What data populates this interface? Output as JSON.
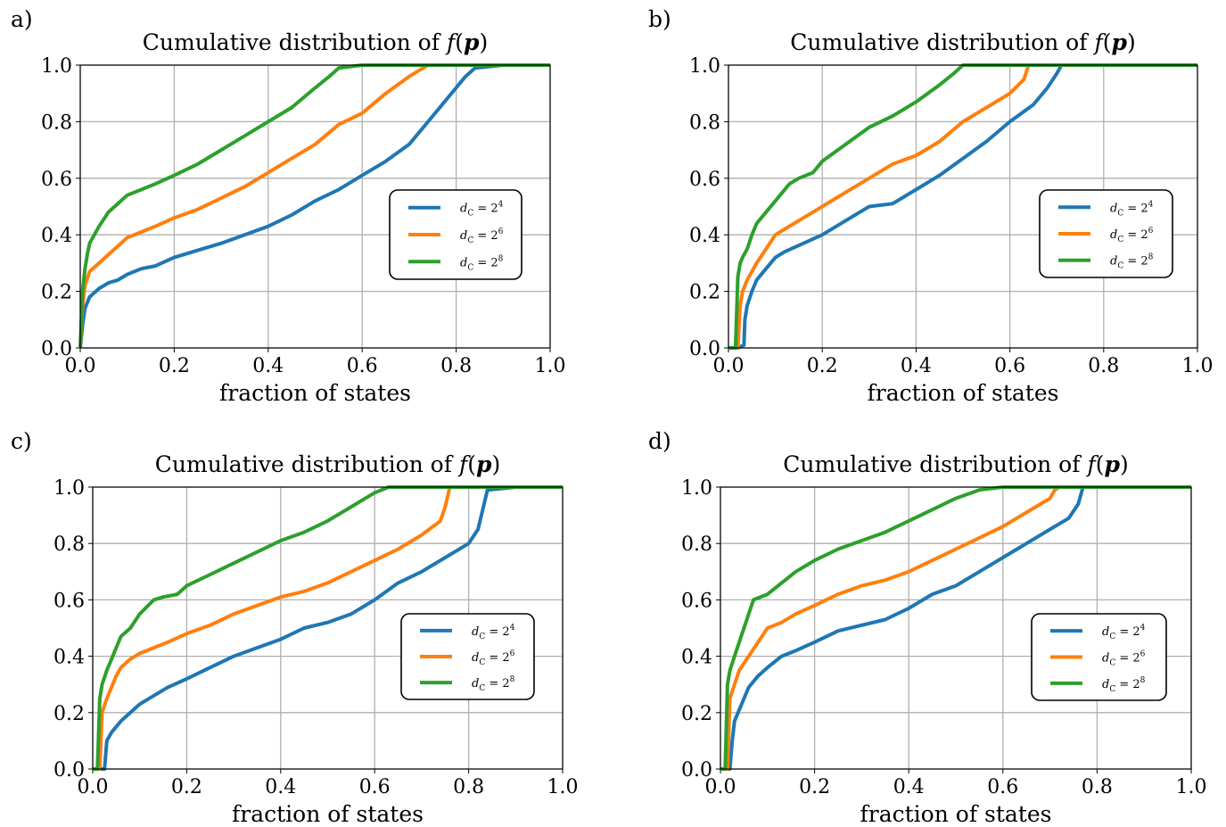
{
  "figure": {
    "colors": {
      "blue": "#1f77b4",
      "orange": "#ff7f0e",
      "green": "#2ca02c",
      "grid": "#b0b0b0"
    }
  },
  "chart_data": [
    {
      "panel": "a)",
      "type": "line",
      "title": "Cumulative distribution of f(p)",
      "xlabel": "fraction of states",
      "ylabel": "",
      "xlim": [
        0,
        1
      ],
      "ylim": [
        0,
        1
      ],
      "xticks": [
        "0.0",
        "0.2",
        "0.4",
        "0.6",
        "0.8",
        "1.0"
      ],
      "yticks": [
        "0.0",
        "0.2",
        "0.4",
        "0.6",
        "0.8",
        "1.0"
      ],
      "grid": true,
      "legend_position": "center-right",
      "series": [
        {
          "name": "d_C = 2^4",
          "color": "#1f77b4",
          "x": [
            0.0,
            0.005,
            0.01,
            0.02,
            0.04,
            0.06,
            0.08,
            0.1,
            0.13,
            0.16,
            0.2,
            0.25,
            0.3,
            0.35,
            0.4,
            0.45,
            0.5,
            0.55,
            0.6,
            0.65,
            0.7,
            0.75,
            0.8,
            0.82,
            0.84,
            0.9,
            1.0
          ],
          "y": [
            0.0,
            0.08,
            0.14,
            0.18,
            0.21,
            0.23,
            0.24,
            0.26,
            0.28,
            0.29,
            0.32,
            0.345,
            0.37,
            0.4,
            0.43,
            0.47,
            0.52,
            0.56,
            0.61,
            0.66,
            0.72,
            0.82,
            0.92,
            0.96,
            0.99,
            1.0,
            1.0
          ]
        },
        {
          "name": "d_C = 2^6",
          "color": "#ff7f0e",
          "x": [
            0.0,
            0.005,
            0.01,
            0.02,
            0.04,
            0.06,
            0.08,
            0.1,
            0.13,
            0.16,
            0.2,
            0.25,
            0.3,
            0.35,
            0.4,
            0.45,
            0.5,
            0.55,
            0.6,
            0.65,
            0.7,
            0.72,
            0.74,
            0.8,
            1.0
          ],
          "y": [
            0.0,
            0.15,
            0.22,
            0.27,
            0.3,
            0.33,
            0.36,
            0.39,
            0.41,
            0.43,
            0.46,
            0.49,
            0.53,
            0.57,
            0.62,
            0.67,
            0.72,
            0.79,
            0.83,
            0.9,
            0.96,
            0.98,
            1.0,
            1.0,
            1.0
          ]
        },
        {
          "name": "d_C = 2^8",
          "color": "#2ca02c",
          "x": [
            0.0,
            0.005,
            0.01,
            0.015,
            0.02,
            0.03,
            0.04,
            0.06,
            0.08,
            0.1,
            0.13,
            0.16,
            0.2,
            0.25,
            0.3,
            0.35,
            0.4,
            0.45,
            0.5,
            0.53,
            0.55,
            0.6,
            1.0
          ],
          "y": [
            0.0,
            0.2,
            0.28,
            0.33,
            0.37,
            0.4,
            0.43,
            0.48,
            0.51,
            0.54,
            0.56,
            0.58,
            0.61,
            0.65,
            0.7,
            0.75,
            0.8,
            0.85,
            0.92,
            0.96,
            0.99,
            1.0,
            1.0
          ]
        }
      ]
    },
    {
      "panel": "b)",
      "type": "line",
      "title": "Cumulative distribution of f(p)",
      "xlabel": "fraction of states",
      "ylabel": "",
      "xlim": [
        0,
        1
      ],
      "ylim": [
        0,
        1
      ],
      "xticks": [
        "0.0",
        "0.2",
        "0.4",
        "0.6",
        "0.8",
        "1.0"
      ],
      "yticks": [
        "0.0",
        "0.2",
        "0.4",
        "0.6",
        "0.8",
        "1.0"
      ],
      "grid": true,
      "legend_position": "center-right",
      "series": [
        {
          "name": "d_C = 2^4",
          "color": "#1f77b4",
          "x": [
            0.0,
            0.02,
            0.033,
            0.035,
            0.04,
            0.05,
            0.06,
            0.08,
            0.1,
            0.12,
            0.16,
            0.2,
            0.25,
            0.3,
            0.35,
            0.4,
            0.45,
            0.5,
            0.55,
            0.6,
            0.65,
            0.68,
            0.7,
            0.71,
            0.8,
            1.0
          ],
          "y": [
            0.0,
            0.0,
            0.01,
            0.1,
            0.15,
            0.2,
            0.24,
            0.28,
            0.32,
            0.34,
            0.37,
            0.4,
            0.45,
            0.5,
            0.51,
            0.56,
            0.61,
            0.67,
            0.73,
            0.8,
            0.86,
            0.92,
            0.97,
            1.0,
            1.0,
            1.0
          ]
        },
        {
          "name": "d_C = 2^6",
          "color": "#ff7f0e",
          "x": [
            0.0,
            0.02,
            0.025,
            0.03,
            0.04,
            0.05,
            0.06,
            0.08,
            0.1,
            0.12,
            0.15,
            0.18,
            0.2,
            0.25,
            0.3,
            0.35,
            0.4,
            0.45,
            0.5,
            0.55,
            0.6,
            0.63,
            0.64,
            0.7,
            1.0
          ],
          "y": [
            0.0,
            0.0,
            0.15,
            0.2,
            0.24,
            0.27,
            0.3,
            0.35,
            0.4,
            0.42,
            0.45,
            0.48,
            0.5,
            0.55,
            0.6,
            0.65,
            0.68,
            0.73,
            0.8,
            0.85,
            0.9,
            0.95,
            1.0,
            1.0,
            1.0
          ]
        },
        {
          "name": "d_C = 2^8",
          "color": "#2ca02c",
          "x": [
            0.0,
            0.015,
            0.02,
            0.025,
            0.03,
            0.04,
            0.05,
            0.06,
            0.08,
            0.1,
            0.13,
            0.15,
            0.18,
            0.2,
            0.25,
            0.3,
            0.35,
            0.4,
            0.45,
            0.48,
            0.5,
            0.6,
            1.0
          ],
          "y": [
            0.0,
            0.0,
            0.25,
            0.3,
            0.32,
            0.35,
            0.4,
            0.44,
            0.48,
            0.52,
            0.58,
            0.6,
            0.62,
            0.66,
            0.72,
            0.78,
            0.82,
            0.87,
            0.93,
            0.97,
            1.0,
            1.0,
            1.0
          ]
        }
      ]
    },
    {
      "panel": "c)",
      "type": "line",
      "title": "Cumulative distribution of f(p)",
      "xlabel": "fraction of states",
      "ylabel": "",
      "xlim": [
        0,
        1
      ],
      "ylim": [
        0,
        1
      ],
      "xticks": [
        "0.0",
        "0.2",
        "0.4",
        "0.6",
        "0.8",
        "1.0"
      ],
      "yticks": [
        "0.0",
        "0.2",
        "0.4",
        "0.6",
        "0.8",
        "1.0"
      ],
      "grid": true,
      "legend_position": "center-right",
      "series": [
        {
          "name": "d_C = 2^4",
          "color": "#1f77b4",
          "x": [
            0.0,
            0.025,
            0.03,
            0.04,
            0.06,
            0.08,
            0.1,
            0.13,
            0.16,
            0.2,
            0.25,
            0.3,
            0.35,
            0.4,
            0.45,
            0.5,
            0.55,
            0.6,
            0.65,
            0.7,
            0.75,
            0.8,
            0.82,
            0.83,
            0.84,
            0.9,
            1.0
          ],
          "y": [
            0.0,
            0.0,
            0.1,
            0.13,
            0.17,
            0.2,
            0.23,
            0.26,
            0.29,
            0.32,
            0.36,
            0.4,
            0.43,
            0.46,
            0.5,
            0.52,
            0.55,
            0.6,
            0.66,
            0.7,
            0.75,
            0.8,
            0.85,
            0.92,
            0.99,
            1.0,
            1.0
          ]
        },
        {
          "name": "d_C = 2^6",
          "color": "#ff7f0e",
          "x": [
            0.0,
            0.015,
            0.02,
            0.03,
            0.04,
            0.05,
            0.06,
            0.08,
            0.1,
            0.13,
            0.16,
            0.2,
            0.25,
            0.3,
            0.35,
            0.4,
            0.45,
            0.5,
            0.55,
            0.6,
            0.65,
            0.7,
            0.74,
            0.75,
            0.76,
            0.8,
            1.0
          ],
          "y": [
            0.0,
            0.0,
            0.2,
            0.25,
            0.29,
            0.33,
            0.36,
            0.39,
            0.41,
            0.43,
            0.45,
            0.48,
            0.51,
            0.55,
            0.58,
            0.61,
            0.63,
            0.66,
            0.7,
            0.74,
            0.78,
            0.83,
            0.88,
            0.93,
            1.0,
            1.0,
            1.0
          ]
        },
        {
          "name": "d_C = 2^8",
          "color": "#2ca02c",
          "x": [
            0.0,
            0.01,
            0.015,
            0.02,
            0.03,
            0.04,
            0.05,
            0.06,
            0.08,
            0.1,
            0.13,
            0.15,
            0.18,
            0.2,
            0.25,
            0.3,
            0.35,
            0.4,
            0.45,
            0.5,
            0.55,
            0.6,
            0.63,
            0.7,
            1.0
          ],
          "y": [
            0.0,
            0.0,
            0.25,
            0.3,
            0.35,
            0.39,
            0.43,
            0.47,
            0.5,
            0.55,
            0.6,
            0.61,
            0.62,
            0.65,
            0.69,
            0.73,
            0.77,
            0.81,
            0.84,
            0.88,
            0.93,
            0.98,
            1.0,
            1.0,
            1.0
          ]
        }
      ]
    },
    {
      "panel": "d)",
      "type": "line",
      "title": "Cumulative distribution of f(p)",
      "xlabel": "fraction of states",
      "ylabel": "",
      "xlim": [
        0,
        1
      ],
      "ylim": [
        0,
        1
      ],
      "xticks": [
        "0.0",
        "0.2",
        "0.4",
        "0.6",
        "0.8",
        "1.0"
      ],
      "yticks": [
        "0.0",
        "0.2",
        "0.4",
        "0.6",
        "0.8",
        "1.0"
      ],
      "grid": true,
      "legend_position": "center-right",
      "series": [
        {
          "name": "d_C = 2^4",
          "color": "#1f77b4",
          "x": [
            0.0,
            0.02,
            0.025,
            0.03,
            0.04,
            0.05,
            0.06,
            0.08,
            0.1,
            0.13,
            0.16,
            0.2,
            0.25,
            0.3,
            0.35,
            0.4,
            0.45,
            0.5,
            0.55,
            0.6,
            0.65,
            0.7,
            0.74,
            0.76,
            0.77,
            0.8,
            1.0
          ],
          "y": [
            0.0,
            0.0,
            0.1,
            0.17,
            0.21,
            0.25,
            0.29,
            0.33,
            0.36,
            0.4,
            0.42,
            0.45,
            0.49,
            0.51,
            0.53,
            0.57,
            0.62,
            0.65,
            0.7,
            0.75,
            0.8,
            0.85,
            0.89,
            0.94,
            1.0,
            1.0,
            1.0
          ]
        },
        {
          "name": "d_C = 2^6",
          "color": "#ff7f0e",
          "x": [
            0.0,
            0.015,
            0.02,
            0.03,
            0.04,
            0.06,
            0.08,
            0.1,
            0.13,
            0.16,
            0.2,
            0.25,
            0.3,
            0.35,
            0.4,
            0.45,
            0.5,
            0.55,
            0.6,
            0.65,
            0.7,
            0.71,
            0.72,
            0.8,
            1.0
          ],
          "y": [
            0.0,
            0.0,
            0.25,
            0.3,
            0.35,
            0.4,
            0.45,
            0.5,
            0.52,
            0.55,
            0.58,
            0.62,
            0.65,
            0.67,
            0.7,
            0.74,
            0.78,
            0.82,
            0.86,
            0.91,
            0.96,
            0.99,
            1.0,
            1.0,
            1.0
          ]
        },
        {
          "name": "d_C = 2^8",
          "color": "#2ca02c",
          "x": [
            0.0,
            0.01,
            0.015,
            0.02,
            0.03,
            0.04,
            0.05,
            0.06,
            0.07,
            0.1,
            0.13,
            0.16,
            0.2,
            0.25,
            0.3,
            0.35,
            0.4,
            0.45,
            0.5,
            0.55,
            0.6,
            1.0
          ],
          "y": [
            0.0,
            0.0,
            0.3,
            0.35,
            0.4,
            0.45,
            0.5,
            0.55,
            0.6,
            0.62,
            0.66,
            0.7,
            0.74,
            0.78,
            0.81,
            0.84,
            0.88,
            0.92,
            0.96,
            0.99,
            1.0,
            1.0
          ]
        }
      ]
    }
  ]
}
